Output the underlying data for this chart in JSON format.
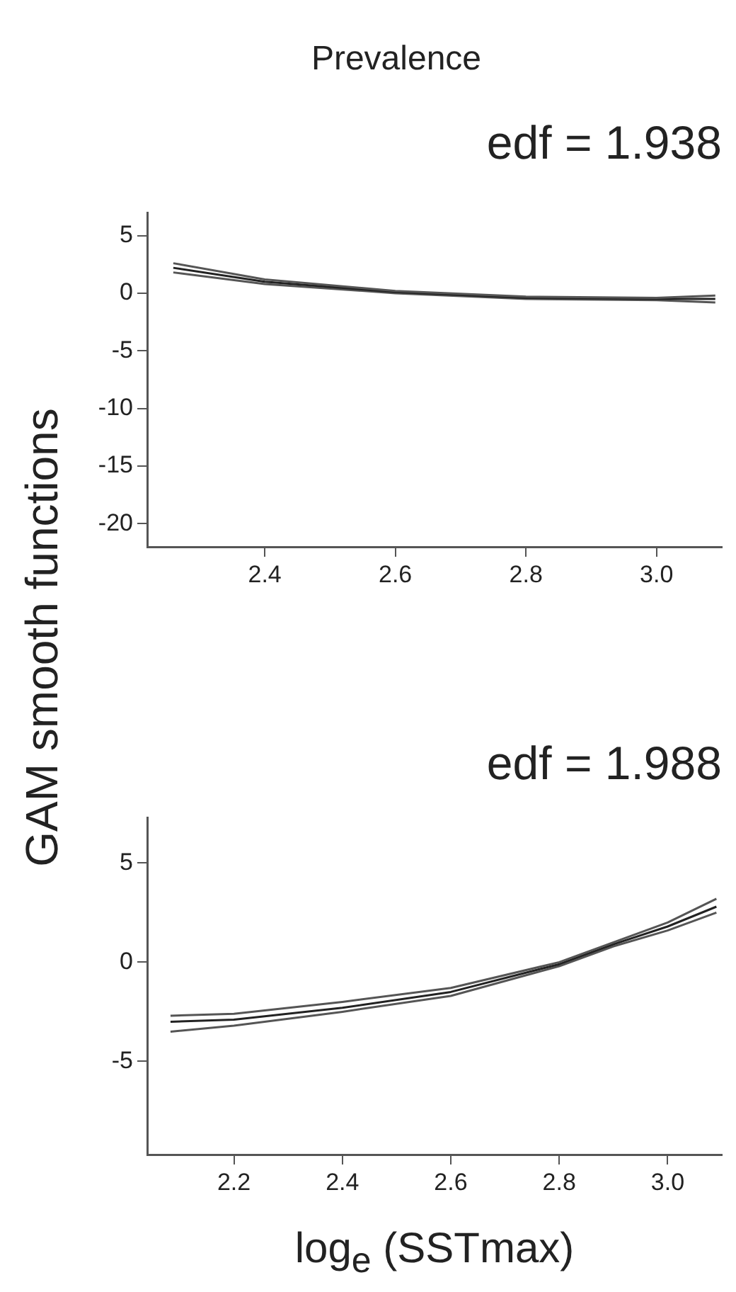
{
  "chart_data": [
    {
      "type": "line",
      "title": "Prevalence",
      "ylabel": "GAM smooth functions",
      "annotations": [
        "edf = 1.938"
      ],
      "x": [
        2.26,
        2.4,
        2.6,
        2.8,
        3.0,
        3.09
      ],
      "series": [
        {
          "color": "#555555",
          "values": [
            2.6,
            1.2,
            0.2,
            -0.3,
            -0.4,
            -0.2
          ]
        },
        {
          "color": "#222222",
          "values": [
            2.2,
            1.0,
            0.1,
            -0.4,
            -0.5,
            -0.5
          ]
        },
        {
          "color": "#555555",
          "values": [
            1.8,
            0.8,
            0.0,
            -0.5,
            -0.6,
            -0.8
          ]
        }
      ],
      "xlim": [
        2.22,
        3.1
      ],
      "ylim": [
        -22,
        7
      ],
      "xticks": [
        {
          "value": 2.4,
          "label": "2.4"
        },
        {
          "value": 2.6,
          "label": "2.6"
        },
        {
          "value": 2.8,
          "label": "2.8"
        },
        {
          "value": 3.0,
          "label": "3.0"
        }
      ],
      "yticks": [
        5,
        0,
        -5,
        -10,
        -15,
        -20
      ],
      "grid": false
    },
    {
      "type": "line",
      "xlabel": "log$_{e}$ (SSTmax)",
      "annotations": [
        "edf = 1.988"
      ],
      "x": [
        2.083,
        2.2,
        2.4,
        2.6,
        2.8,
        2.9,
        3.0,
        3.09
      ],
      "series": [
        {
          "color": "#555555",
          "values": [
            -2.7,
            -2.6,
            -2.0,
            -1.3,
            0.0,
            1.0,
            2.0,
            3.2
          ]
        },
        {
          "color": "#222222",
          "values": [
            -3.0,
            -2.9,
            -2.3,
            -1.5,
            -0.1,
            0.9,
            1.8,
            2.8
          ]
        },
        {
          "color": "#555555",
          "values": [
            -3.5,
            -3.2,
            -2.5,
            -1.7,
            -0.2,
            0.8,
            1.6,
            2.5
          ]
        }
      ],
      "xlim": [
        2.04,
        3.1
      ],
      "ylim": [
        -9.7,
        7.3
      ],
      "xticks": [
        {
          "value": 2.2,
          "label": "2.2"
        },
        {
          "value": 2.4,
          "label": "2.4"
        },
        {
          "value": 2.6,
          "label": "2.6"
        },
        {
          "value": 2.8,
          "label": "2.8"
        },
        {
          "value": 3.0,
          "label": "3.0"
        }
      ],
      "yticks": [
        5,
        0,
        -5
      ],
      "grid": false
    }
  ]
}
